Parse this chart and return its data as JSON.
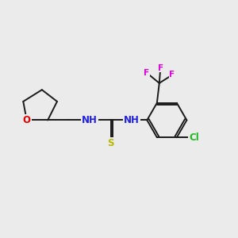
{
  "background_color": "#ebebeb",
  "bond_color": "#1a1a1a",
  "bond_width": 1.4,
  "atom_colors": {
    "C": "#1a1a1a",
    "N": "#2020e0",
    "O": "#e00000",
    "S": "#b8b800",
    "F": "#e000e0",
    "Cl": "#20b820"
  },
  "font_size": 8.5,
  "fs_small": 7.5
}
